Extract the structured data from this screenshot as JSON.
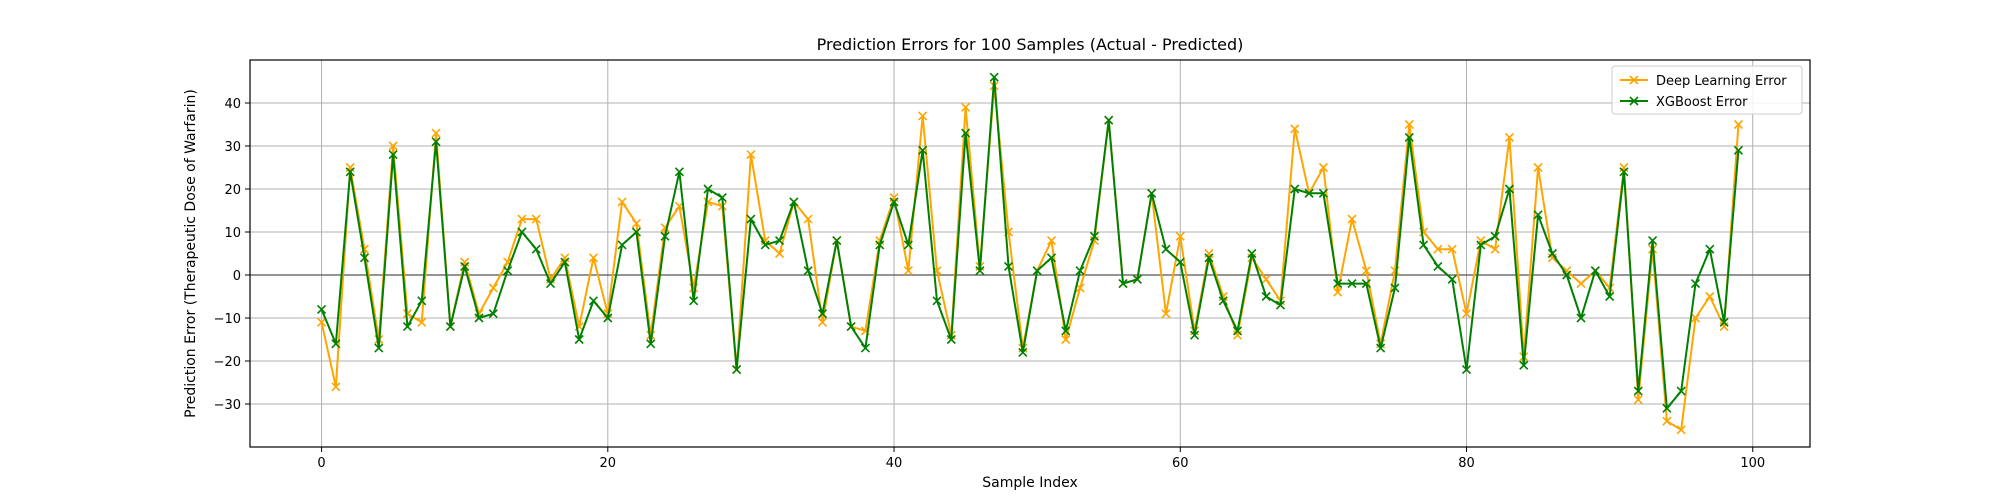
{
  "chart_data": {
    "type": "line",
    "title": "Prediction Errors for 100 Samples (Actual - Predicted)",
    "xlabel": "Sample Index",
    "ylabel": "Prediction Error (Therapeutic Dose of Warfarin)",
    "xlim": [
      -5,
      104
    ],
    "ylim": [
      -40,
      50
    ],
    "xticks": [
      0,
      20,
      40,
      60,
      80,
      100
    ],
    "yticks": [
      -30,
      -20,
      -10,
      0,
      10,
      20,
      30,
      40
    ],
    "grid": true,
    "zero_line": true,
    "legend_position": "top-right",
    "x": [
      0,
      1,
      2,
      3,
      4,
      5,
      6,
      7,
      8,
      9,
      10,
      11,
      12,
      13,
      14,
      15,
      16,
      17,
      18,
      19,
      20,
      21,
      22,
      23,
      24,
      25,
      26,
      27,
      28,
      29,
      30,
      31,
      32,
      33,
      34,
      35,
      36,
      37,
      38,
      39,
      40,
      41,
      42,
      43,
      44,
      45,
      46,
      47,
      48,
      49,
      50,
      51,
      52,
      53,
      54,
      55,
      56,
      57,
      58,
      59,
      60,
      61,
      62,
      63,
      64,
      65,
      66,
      67,
      68,
      69,
      70,
      71,
      72,
      73,
      74,
      75,
      76,
      77,
      78,
      79,
      80,
      81,
      82,
      83,
      84,
      85,
      86,
      87,
      88,
      89,
      90,
      91,
      92,
      93,
      94,
      95,
      96,
      97,
      98,
      99
    ],
    "series": [
      {
        "name": "Deep Learning Error",
        "color": "#ffa500",
        "marker": "x",
        "values": [
          -11,
          -26,
          25,
          6,
          -15,
          30,
          -9,
          -11,
          33,
          -12,
          3,
          -9,
          -3,
          3,
          13,
          13,
          -1,
          4,
          -12,
          4,
          -9,
          17,
          12,
          -14,
          11,
          16,
          -3,
          17,
          16,
          -22,
          28,
          8,
          5,
          17,
          13,
          -11,
          8,
          -12,
          -13,
          8,
          18,
          1,
          37,
          1,
          -14,
          39,
          2,
          44,
          10,
          -17,
          1,
          8,
          -15,
          -3,
          8,
          36,
          -2,
          -1,
          19,
          -9,
          9,
          -13,
          5,
          -5,
          -14,
          4,
          -1,
          -6,
          34,
          19,
          25,
          -4,
          13,
          1,
          -16,
          1,
          35,
          10,
          6,
          6,
          -9,
          8,
          6,
          32,
          -19,
          25,
          4,
          1,
          -2,
          1,
          -3,
          25,
          -29,
          6,
          -34,
          -36,
          -10,
          -5,
          -12,
          35
        ]
      },
      {
        "name": "XGBoost Error",
        "color": "#008000",
        "marker": "x",
        "values": [
          -8,
          -16,
          24,
          4,
          -17,
          28,
          -12,
          -6,
          31,
          -12,
          2,
          -10,
          -9,
          1,
          10,
          6,
          -2,
          3,
          -15,
          -6,
          -10,
          7,
          10,
          -16,
          9,
          24,
          -6,
          20,
          18,
          -22,
          13,
          7,
          8,
          17,
          1,
          -9,
          8,
          -12,
          -17,
          7,
          17,
          7,
          29,
          -6,
          -15,
          33,
          1,
          46,
          2,
          -18,
          1,
          4,
          -13,
          1,
          9,
          36,
          -2,
          -1,
          19,
          6,
          3,
          -14,
          4,
          -6,
          -13,
          5,
          -5,
          -7,
          20,
          19,
          19,
          -2,
          -2,
          -2,
          -17,
          -3,
          32,
          7,
          2,
          -1,
          -22,
          7,
          9,
          20,
          -21,
          14,
          5,
          0,
          -10,
          1,
          -5,
          24,
          -27,
          8,
          -31,
          -27,
          -2,
          6,
          -11,
          29
        ]
      }
    ]
  }
}
